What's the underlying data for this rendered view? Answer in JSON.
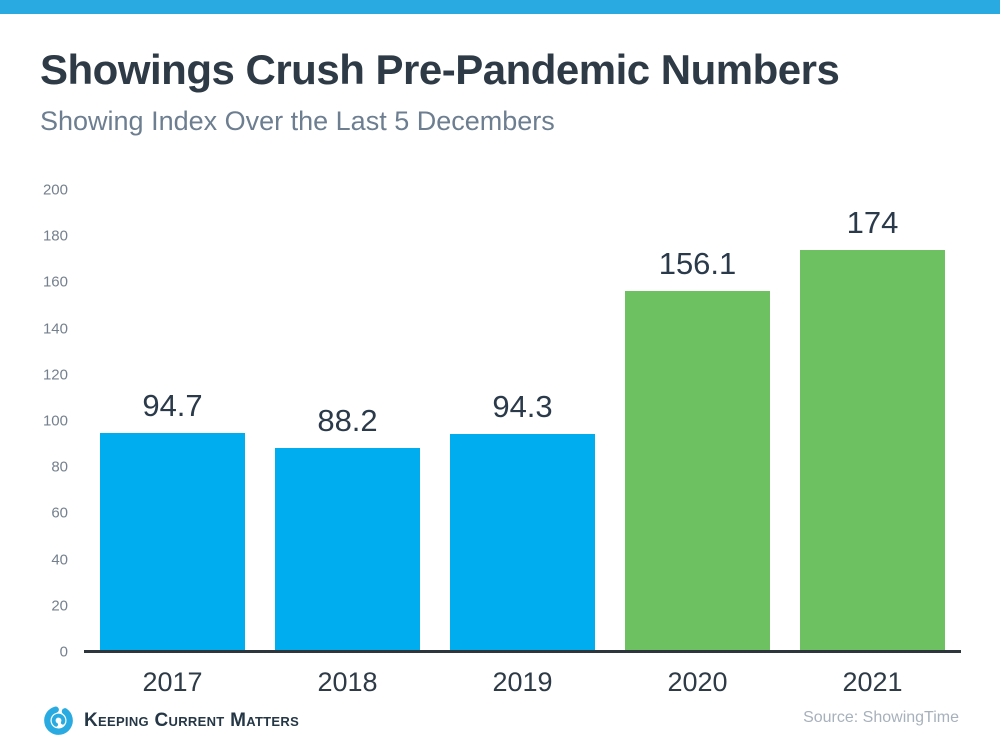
{
  "header": {
    "top_stripe_color": "#29ABE2"
  },
  "chart_data": {
    "type": "bar",
    "title": "Showings Crush Pre-Pandemic Numbers",
    "subtitle": "Showing Index Over the Last 5 Decembers",
    "categories": [
      "2017",
      "2018",
      "2019",
      "2020",
      "2021"
    ],
    "values": [
      94.7,
      88.2,
      94.3,
      156.1,
      174
    ],
    "value_labels": [
      "94.7",
      "88.2",
      "94.3",
      "156.1",
      "174"
    ],
    "bar_colors": [
      "#00AEEF",
      "#00AEEF",
      "#00AEEF",
      "#6EC161",
      "#6EC161"
    ],
    "xlabel": "",
    "ylabel": "",
    "ylim": [
      0,
      200
    ],
    "yticks": [
      0,
      20,
      40,
      60,
      80,
      100,
      120,
      140,
      160,
      180,
      200
    ],
    "grid": false,
    "legend": "none"
  },
  "colors": {
    "bar_blue": "#00AEEF",
    "bar_green": "#6EC161",
    "title_text": "#2E3B47",
    "subtitle_text": "#6D7E91",
    "tick_text": "#75808E",
    "axis_line": "#2D353D",
    "source_text": "#A7B1BC",
    "brand_blue": "#29ABE2"
  },
  "footer": {
    "brand": "Keeping Current Matters",
    "logo_icon": "kcm-swirl-icon",
    "source": "Source: ShowingTime"
  }
}
